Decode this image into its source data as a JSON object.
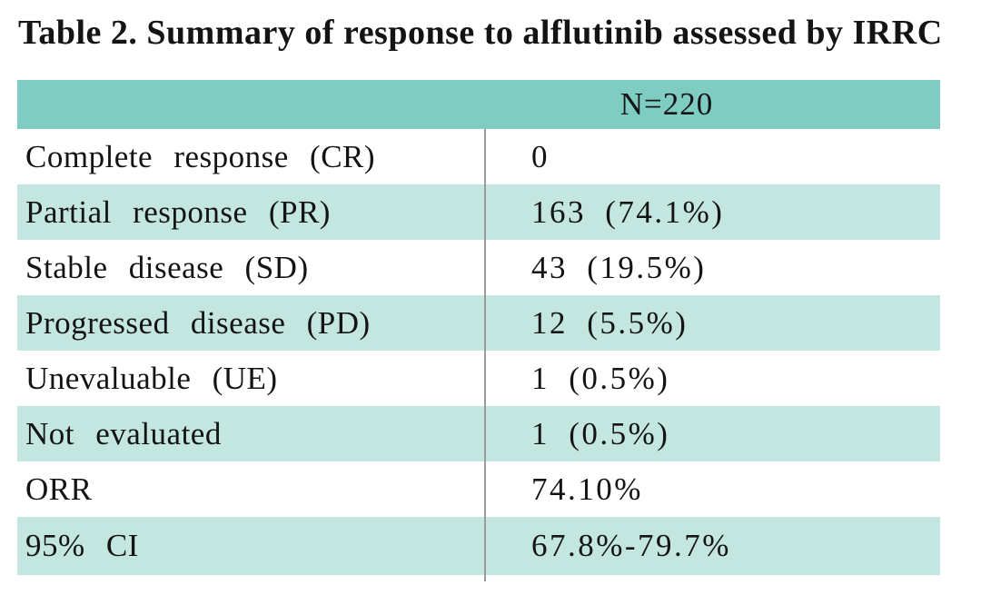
{
  "title": "Table 2. Summary of response to alflutinib assessed by IRRC",
  "table": {
    "header_value": "N=220",
    "rows": [
      {
        "label": "Complete response (CR)",
        "value": "0"
      },
      {
        "label": "Partial response (PR)",
        "value": "163 (74.1%)"
      },
      {
        "label": "Stable disease (SD)",
        "value": "43 (19.5%)"
      },
      {
        "label": "Progressed disease (PD)",
        "value": "12 (5.5%)"
      },
      {
        "label": "Unevaluable (UE)",
        "value": "1 (0.5%)"
      },
      {
        "label": "Not evaluated",
        "value": "1 (0.5%)"
      },
      {
        "label": "ORR",
        "value": "74.10%"
      },
      {
        "label": "95% CI",
        "value": "67.8%-79.7%"
      }
    ],
    "colors": {
      "header_bg": "#7ECCC2",
      "zebra_row_bg": "#C4E6E0",
      "plain_row_bg": "#FFFFFF",
      "divider": "#9B9B9B",
      "text": "#141414"
    }
  }
}
